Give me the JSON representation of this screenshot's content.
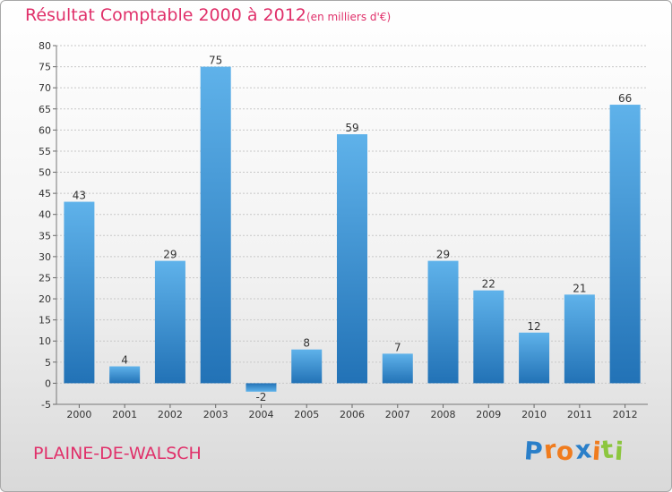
{
  "chart_data": {
    "type": "bar",
    "title": "Résultat Comptable 2000 à 2012",
    "subtitle": "(en milliers d'€)",
    "categories": [
      "2000",
      "2001",
      "2002",
      "2003",
      "2004",
      "2005",
      "2006",
      "2007",
      "2008",
      "2009",
      "2010",
      "2011",
      "2012"
    ],
    "values": [
      43,
      4,
      29,
      75,
      -2,
      8,
      59,
      7,
      29,
      22,
      12,
      21,
      66
    ],
    "value_labels": [
      "43",
      "4",
      "29",
      "75",
      "-2",
      "8",
      "59",
      "7",
      "29",
      "22",
      "12",
      "21",
      "66"
    ],
    "ylim": [
      -5,
      80
    ],
    "yticks": [
      -5,
      0,
      5,
      10,
      15,
      20,
      25,
      30,
      35,
      40,
      45,
      50,
      55,
      60,
      65,
      70,
      75,
      80
    ],
    "ytick_labels": [
      "-5",
      "0",
      "5",
      "10",
      "15",
      "20",
      "25",
      "30",
      "35",
      "40",
      "45",
      "50",
      "55",
      "60",
      "65",
      "70",
      "75",
      "80"
    ],
    "xlabel": "",
    "ylabel": "",
    "grid": "horizontal dashed",
    "bar_color": "#3d93d3"
  },
  "commune": "PLAINE-DE-WALSCH",
  "logo": {
    "text": "Proxiti",
    "letters": [
      "P",
      "r",
      "o",
      "x",
      "i",
      "t",
      "i"
    ],
    "colors": [
      "#2a7fc9",
      "#f07c1e",
      "#f07c1e",
      "#2a7fc9",
      "#f07c1e",
      "#8cc63f",
      "#8cc63f"
    ]
  },
  "colors": {
    "accent": "#e0306a",
    "bar": "#3d93d3",
    "grid": "#c8c8c8"
  }
}
